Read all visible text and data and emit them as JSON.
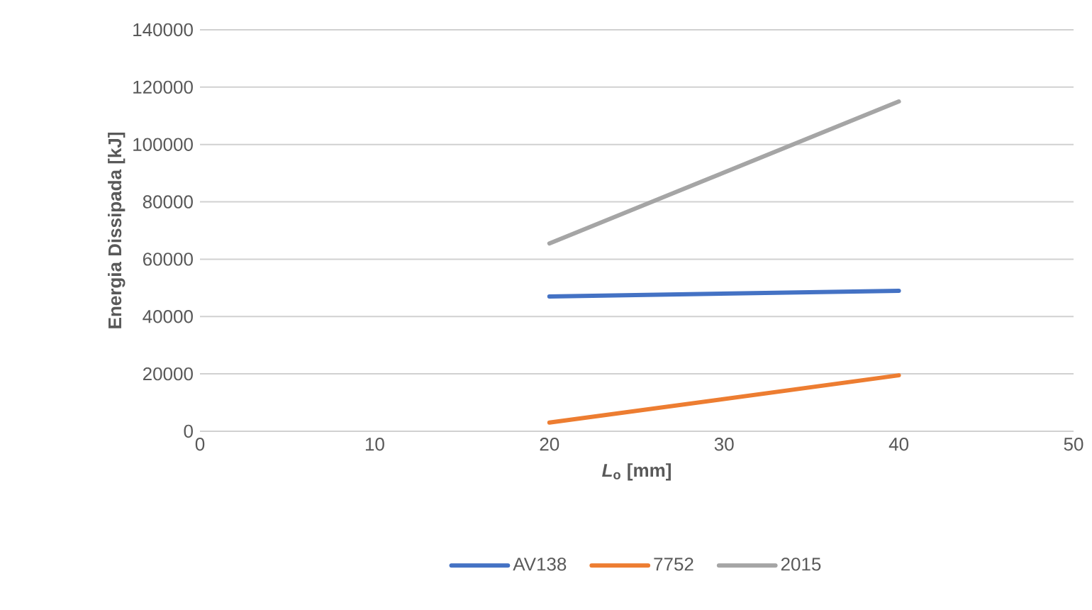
{
  "chart_data": {
    "type": "line",
    "xlabel": "*L*$_{o}$ [mm]",
    "ylabel": "Energia Dissipada  [kJ]",
    "x": [
      20,
      40
    ],
    "series": [
      {
        "name": "AV138",
        "color": "#4472c4",
        "values": [
          47000,
          49000
        ]
      },
      {
        "name": "7752",
        "color": "#ed7d31",
        "values": [
          3000,
          19500
        ]
      },
      {
        "name": "2015",
        "color": "#a5a5a5",
        "values": [
          65500,
          115000
        ]
      }
    ],
    "xlim": [
      0,
      50
    ],
    "xticks": [
      0,
      10,
      20,
      30,
      40,
      50
    ],
    "ylim": [
      0,
      140000
    ],
    "yticks": [
      0,
      20000,
      40000,
      60000,
      80000,
      100000,
      120000,
      140000
    ],
    "grid": "y",
    "legend": "bottom",
    "marker": "none",
    "line_style": "solid"
  }
}
